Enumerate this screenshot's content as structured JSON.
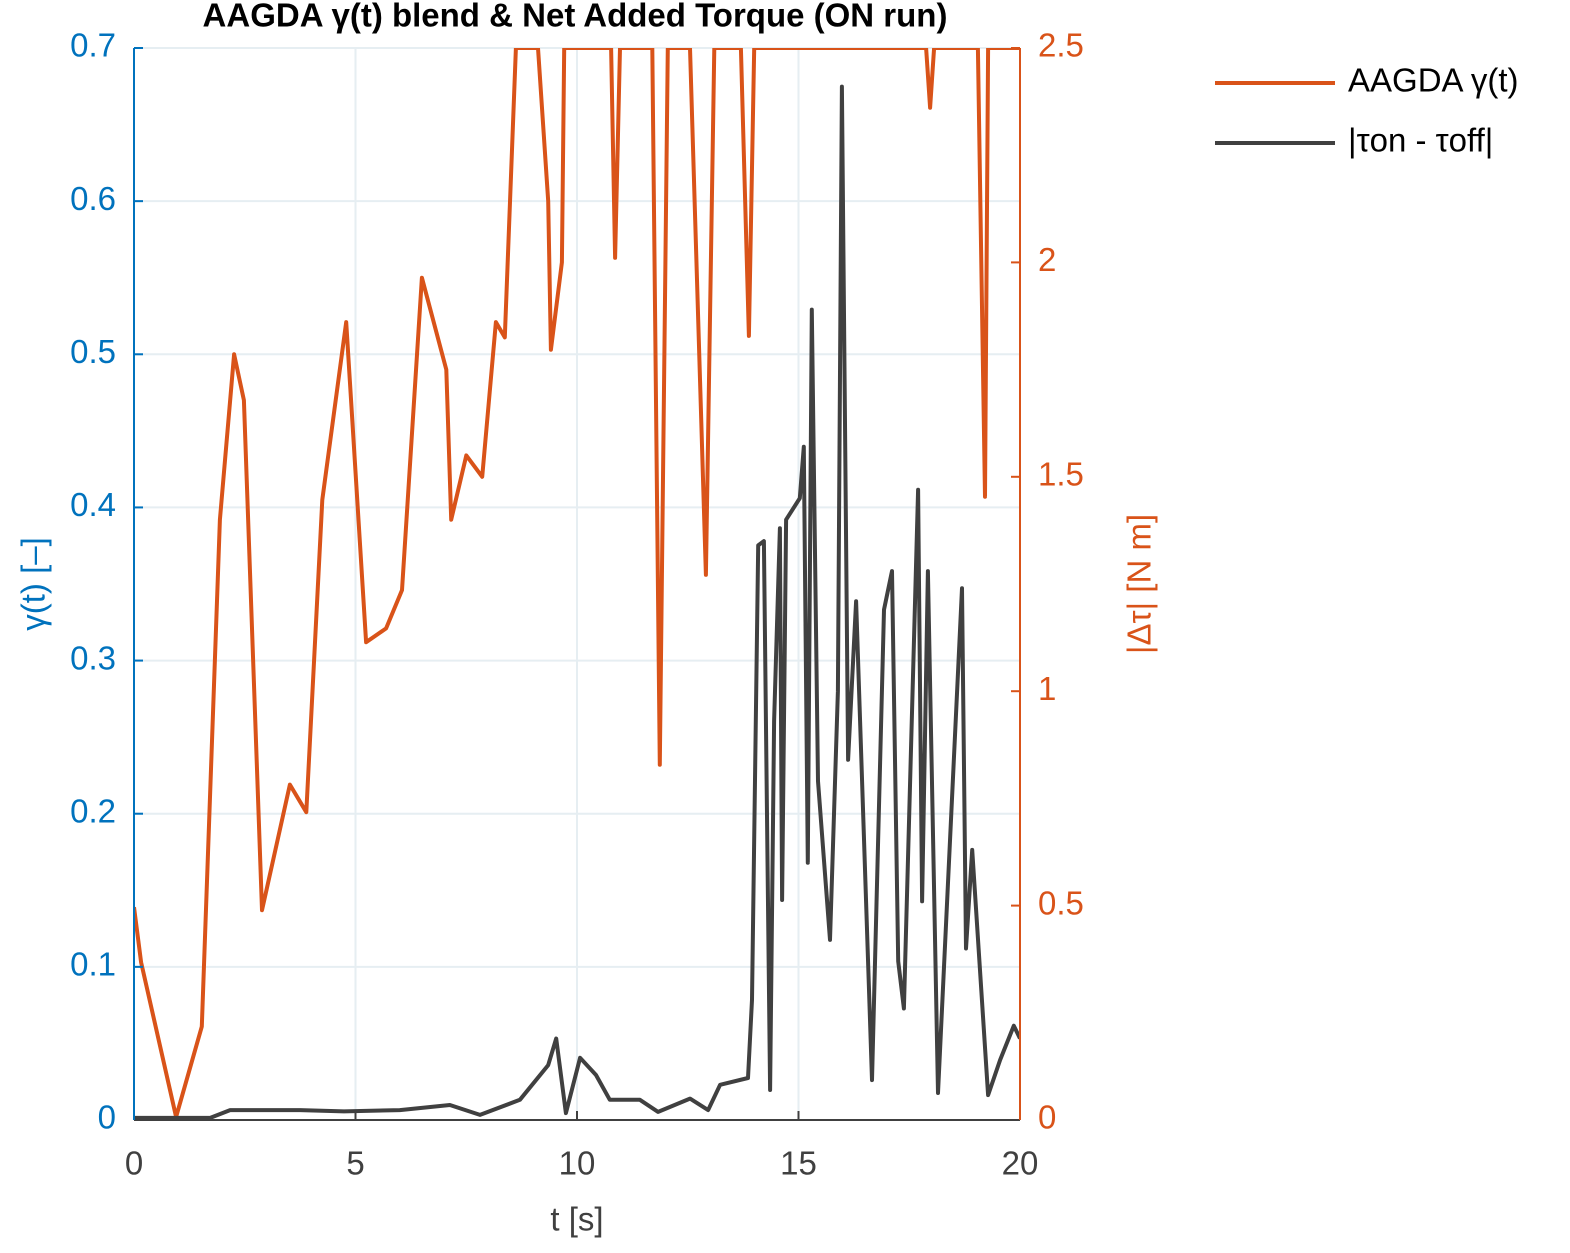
{
  "chart_data": {
    "type": "line",
    "title": "AAGDA γ(t) blend & Net Added Torque (ON run)",
    "xlabel": "t [s]",
    "ylabel": "γ(t) [–]",
    "y2label": "|Δτ| [N m]",
    "xlim": [
      0,
      20
    ],
    "xticks": [
      0,
      5,
      10,
      15,
      20
    ],
    "ylim": [
      0,
      0.7
    ],
    "yticks": [
      0,
      0.1,
      0.2,
      0.3,
      0.4,
      0.5,
      0.6,
      0.7
    ],
    "y2lim": [
      0,
      2.5
    ],
    "y2ticks": [
      0,
      0.5,
      1,
      1.5,
      2,
      2.5
    ],
    "grid": true,
    "legend": "outside-right",
    "ycolor": "#0072BD",
    "y2color": "#D95319",
    "series": [
      {
        "name": "AAGDA γ(t)",
        "color": "#D95319",
        "axis": "y",
        "x": [
          0,
          0.16,
          0.95,
          1.53,
          1.94,
          2.26,
          2.48,
          2.89,
          3.52,
          3.89,
          4.25,
          4.79,
          5.24,
          5.69,
          6.05,
          6.5,
          7.05,
          7.16,
          7.5,
          7.86,
          8.17,
          8.37,
          8.62,
          9.12,
          9.35,
          9.41,
          9.66,
          9.71,
          10.77,
          10.86,
          10.97,
          11.7,
          11.87,
          12.05,
          12.55,
          12.91,
          13.1,
          13.7,
          13.88,
          14.0,
          17.88,
          17.97,
          18.06,
          19.05,
          19.21,
          19.28,
          20
        ],
        "values": [
          0.139,
          0.103,
          0.002,
          0.061,
          0.392,
          0.5,
          0.47,
          0.137,
          0.219,
          0.201,
          0.405,
          0.521,
          0.312,
          0.321,
          0.346,
          0.55,
          0.49,
          0.392,
          0.434,
          0.42,
          0.521,
          0.511,
          0.7,
          0.7,
          0.6,
          0.503,
          0.56,
          0.7,
          0.7,
          0.563,
          0.7,
          0.7,
          0.232,
          0.7,
          0.7,
          0.356,
          0.7,
          0.7,
          0.512,
          0.7,
          0.7,
          0.661,
          0.7,
          0.7,
          0.407,
          0.7,
          0.7
        ]
      },
      {
        "name": "|τon - τoff|",
        "color": "#404040",
        "axis": "y2",
        "x": [
          0,
          1.72,
          2.17,
          3.75,
          4.74,
          6.0,
          7.13,
          7.81,
          8.71,
          9.35,
          9.53,
          9.75,
          10.07,
          10.43,
          10.74,
          11.42,
          11.83,
          12.55,
          12.96,
          13.23,
          13.86,
          13.95,
          14.09,
          14.22,
          14.36,
          14.45,
          14.58,
          14.63,
          14.72,
          15.03,
          15.12,
          15.21,
          15.3,
          15.44,
          15.71,
          15.89,
          15.98,
          16.12,
          16.3,
          16.66,
          16.93,
          17.11,
          17.25,
          17.38,
          17.7,
          17.79,
          17.92,
          18.15,
          18.69,
          18.78,
          18.92,
          19.28,
          19.55,
          19.86,
          20
        ],
        "values": [
          0.005,
          0.005,
          0.023,
          0.023,
          0.02,
          0.023,
          0.035,
          0.012,
          0.047,
          0.128,
          0.19,
          0.016,
          0.145,
          0.105,
          0.047,
          0.047,
          0.019,
          0.05,
          0.023,
          0.082,
          0.098,
          0.28,
          1.34,
          1.35,
          0.07,
          0.93,
          1.38,
          0.513,
          1.4,
          1.45,
          1.57,
          0.6,
          1.89,
          0.79,
          0.42,
          1.0,
          2.41,
          0.84,
          1.21,
          0.093,
          1.19,
          1.28,
          0.37,
          0.26,
          1.47,
          0.51,
          1.28,
          0.063,
          1.24,
          0.4,
          0.63,
          0.058,
          0.14,
          0.22,
          0.19
        ]
      }
    ]
  }
}
